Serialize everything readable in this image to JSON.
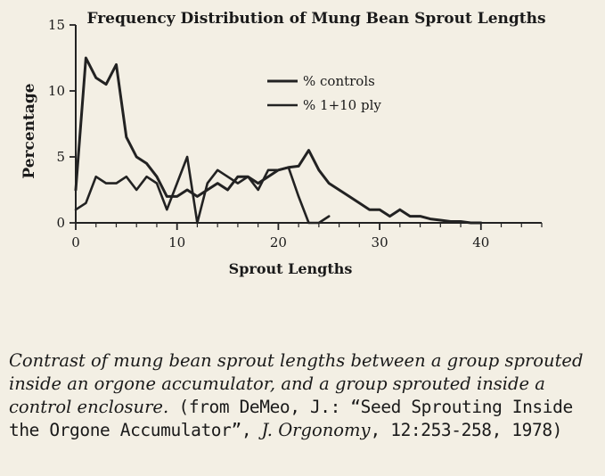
{
  "chart_data": {
    "type": "line",
    "title": "Frequency Distribution of Mung Bean Sprout Lengths",
    "xlabel": "Sprout Lengths",
    "ylabel": "Percentage",
    "xlim": [
      0,
      46
    ],
    "ylim": [
      0,
      15
    ],
    "xticks": [
      0,
      10,
      20,
      30,
      40
    ],
    "yticks": [
      0,
      5,
      10,
      15
    ],
    "legend_position": "upper-center",
    "series": [
      {
        "name": "% controls",
        "color": "#222222",
        "x": [
          0,
          1,
          2,
          3,
          4,
          5,
          6,
          7,
          8,
          9,
          10,
          11,
          12,
          13,
          14,
          15,
          16,
          17,
          18,
          19,
          20,
          21,
          22,
          23,
          24,
          25,
          26,
          27,
          28,
          29,
          30,
          31,
          32,
          33,
          34,
          35,
          36,
          37,
          38,
          39,
          40
        ],
        "y": [
          2.5,
          12.5,
          11,
          10.5,
          12,
          6.5,
          5,
          4.5,
          3.5,
          2,
          2,
          2.5,
          2,
          2.5,
          3,
          2.5,
          3.5,
          3.5,
          3,
          3.5,
          4,
          4.2,
          4.3,
          5.5,
          4,
          3,
          2.5,
          2,
          1.5,
          1,
          1,
          0.5,
          1,
          0.5,
          0.5,
          0.3,
          0.2,
          0.1,
          0.1,
          0,
          0
        ]
      },
      {
        "name": "% 1+10 ply",
        "color": "#222222",
        "x": [
          0,
          1,
          2,
          3,
          4,
          5,
          6,
          7,
          8,
          9,
          10,
          11,
          12,
          13,
          14,
          15,
          16,
          17,
          18,
          19,
          20,
          21,
          22,
          23,
          24,
          25
        ],
        "y": [
          1,
          1.5,
          3.5,
          3,
          3,
          3.5,
          2.5,
          3.5,
          3,
          1,
          3,
          5,
          0,
          3,
          4,
          3.5,
          3,
          3.5,
          2.5,
          4,
          4,
          4.2,
          2,
          0,
          0,
          0.5
        ]
      }
    ]
  },
  "caption": {
    "main": "Contrast of mung bean sprout lengths between a group sprouted inside an orgone accumulator, and a group sprouted inside a control enclosure.",
    "source_prefix": " (from DeMeo, J.: “Seed Sprouting Inside the Orgone Accumulator”, ",
    "journal": "J. Orgonomy",
    "source_suffix": ", 12:253-258, 1978)"
  }
}
